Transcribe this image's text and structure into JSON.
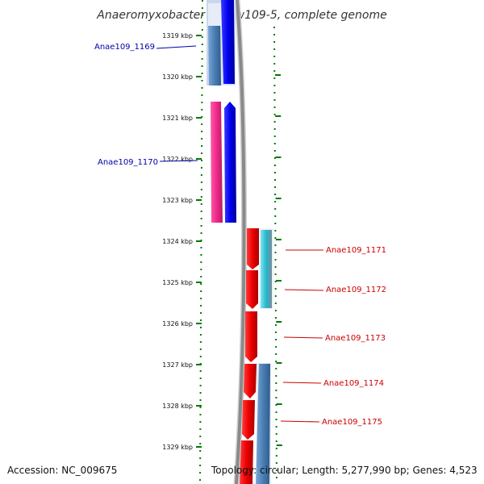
{
  "title": "Anaeromyxobacter sp. Fw109-5, complete genome",
  "kbp_labels": [
    "1319 kbp",
    "1320 kbp",
    "1321 kbp",
    "1322 kbp",
    "1323 kbp",
    "1324 kbp",
    "1325 kbp",
    "1326 kbp",
    "1327 kbp",
    "1328 kbp",
    "1329 kbp"
  ],
  "genes": [
    {
      "name": "Anae109_1169",
      "strand": "left"
    },
    {
      "name": "Anae109_1170",
      "strand": "left"
    },
    {
      "name": "Anae109_1171",
      "strand": "right"
    },
    {
      "name": "Anae109_1172",
      "strand": "right"
    },
    {
      "name": "Anae109_1173",
      "strand": "right"
    },
    {
      "name": "Anae109_1174",
      "strand": "right"
    },
    {
      "name": "Anae109_1175",
      "strand": "right"
    }
  ],
  "footer": {
    "accession": "Accession: NC_009675",
    "topology": "Topology: circular; Length: 5,277,990 bp; Genes: 4,523"
  },
  "colors": {
    "left_label": "#0000aa",
    "right_label": "#cc0000",
    "tick_green": "#007a00",
    "backbone": "#888888",
    "blue_feature": "#0000ee",
    "magenta_feature": "#ee2a8a",
    "steel_feature": "#4a7fb5",
    "red_feature": "#ee0000",
    "cyan_feature": "#22b8cc"
  }
}
